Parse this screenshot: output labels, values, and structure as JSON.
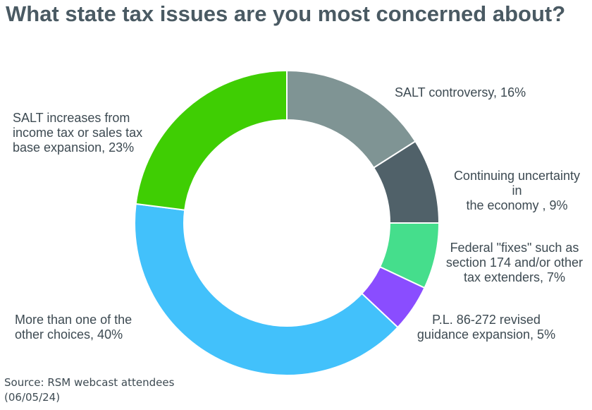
{
  "chart_data": {
    "type": "pie",
    "title": "What state tax issues are you most concerned about?",
    "donut": true,
    "categories": [
      "SALT controversy",
      "Continuing uncertainty in the economy",
      "Federal \"fixes\" such as section 174 and/or other tax extenders",
      "P.L. 86-272 revised guidance expansion",
      "More than one of the other choices",
      "SALT increases from income tax or sales tax base expansion"
    ],
    "values": [
      16,
      9,
      7,
      5,
      40,
      23
    ],
    "unit": "%",
    "colors": [
      "#7f9494",
      "#506169",
      "#45de8c",
      "#8a4dff",
      "#42c1fb",
      "#3fce03"
    ],
    "data_labels": [
      "SALT controversy, 16%",
      "Continuing uncertainty in\nthe economy , 9%",
      "Federal \"fixes\" such as\nsection 174 and/or other\ntax extenders, 7%",
      "P.L. 86-272 revised\nguidance expansion, 5%",
      "More than one of the\nother choices, 40%",
      "SALT increases from\nincome tax or sales tax\nbase expansion, 23%"
    ],
    "legend": "none (labels placed beside slices)"
  },
  "source_note": "Source: RSM webcast attendees\n(06/05/24)"
}
